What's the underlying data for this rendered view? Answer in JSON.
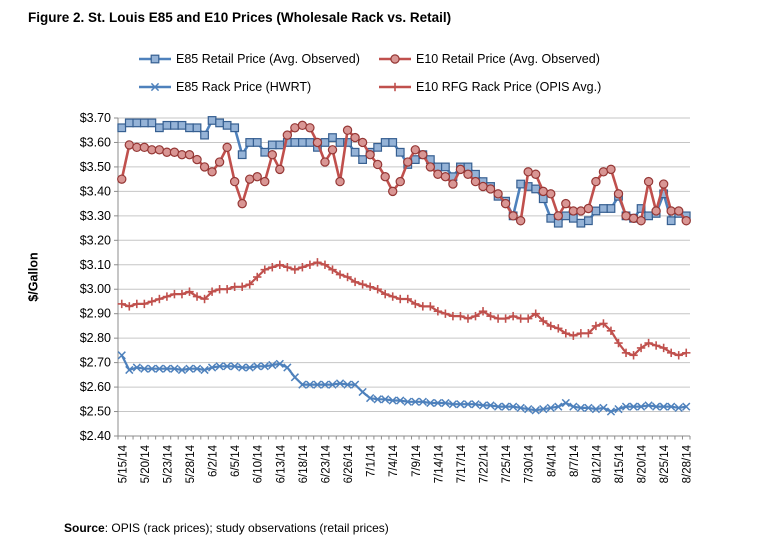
{
  "title": "Figure 2. St. Louis E85 and E10 Prices (Wholesale Rack vs. Retail)",
  "y_axis": {
    "title": "$/Gallon"
  },
  "source": {
    "label": "Source",
    "text": ": OPIS (rack prices); study observations (retail prices)"
  },
  "colors": {
    "blue": "#4E81BC",
    "blue_fill": "#95B3D7",
    "blue_dark": "#365F91",
    "red": "#C0504D",
    "red_fill": "#D99694",
    "red_dark": "#953735",
    "grid": "#C6C6C6",
    "axis": "#8C8C8C",
    "text": "#000000"
  },
  "chart_data": {
    "type": "line",
    "title": "Figure 2. St. Louis E85 and E10 Prices (Wholesale Rack vs. Retail)",
    "ylabel": "$/Gallon",
    "ylim": [
      2.4,
      3.7
    ],
    "y_tick_step": 0.1,
    "grid": "horizontal",
    "legend_position": "top",
    "n_points": 76,
    "label_every": 3,
    "x_labels_shown": [
      "5/15/14",
      "5/20/14",
      "5/23/14",
      "5/28/14",
      "6/2/14",
      "6/5/14",
      "6/10/14",
      "6/13/14",
      "6/18/14",
      "6/23/14",
      "6/26/14",
      "7/1/14",
      "7/4/14",
      "7/9/14",
      "7/14/14",
      "7/17/14",
      "7/22/14",
      "7/25/14",
      "7/30/14",
      "8/4/14",
      "8/7/14",
      "8/12/14",
      "8/15/14",
      "8/20/14",
      "8/25/14",
      "8/28/14"
    ],
    "series": [
      {
        "name": "E85 Retail Price (Avg. Observed)",
        "color_key": "blue",
        "marker": "square",
        "values": [
          3.66,
          3.68,
          3.68,
          3.68,
          3.68,
          3.66,
          3.67,
          3.67,
          3.67,
          3.66,
          3.66,
          3.63,
          3.69,
          3.68,
          3.67,
          3.66,
          3.55,
          3.6,
          3.6,
          3.56,
          3.59,
          3.59,
          3.6,
          3.6,
          3.6,
          3.6,
          3.58,
          3.6,
          3.62,
          3.6,
          3.6,
          3.56,
          3.53,
          3.56,
          3.58,
          3.6,
          3.6,
          3.56,
          3.51,
          3.53,
          3.55,
          3.53,
          3.5,
          3.5,
          3.46,
          3.5,
          3.5,
          3.47,
          3.44,
          3.42,
          3.38,
          3.36,
          3.3,
          3.43,
          3.42,
          3.41,
          3.37,
          3.29,
          3.27,
          3.3,
          3.29,
          3.27,
          3.28,
          3.32,
          3.33,
          3.33,
          3.38,
          3.3,
          3.29,
          3.33,
          3.3,
          3.31,
          3.39,
          3.28,
          3.31,
          3.3
        ]
      },
      {
        "name": "E10 Retail Price (Avg. Observed)",
        "color_key": "red",
        "marker": "circle",
        "values": [
          3.45,
          3.59,
          3.58,
          3.58,
          3.57,
          3.57,
          3.56,
          3.56,
          3.55,
          3.55,
          3.53,
          3.5,
          3.48,
          3.52,
          3.58,
          3.44,
          3.35,
          3.45,
          3.46,
          3.44,
          3.55,
          3.49,
          3.63,
          3.66,
          3.67,
          3.66,
          3.6,
          3.52,
          3.57,
          3.44,
          3.65,
          3.62,
          3.6,
          3.55,
          3.51,
          3.46,
          3.4,
          3.44,
          3.52,
          3.57,
          3.55,
          3.5,
          3.47,
          3.46,
          3.43,
          3.49,
          3.47,
          3.44,
          3.42,
          3.41,
          3.39,
          3.35,
          3.3,
          3.28,
          3.48,
          3.47,
          3.4,
          3.39,
          3.3,
          3.35,
          3.32,
          3.32,
          3.33,
          3.44,
          3.48,
          3.49,
          3.39,
          3.3,
          3.29,
          3.28,
          3.44,
          3.32,
          3.43,
          3.32,
          3.32,
          3.28
        ]
      },
      {
        "name": "E85 Rack Price (HWRT)",
        "color_key": "blue",
        "marker": "x",
        "values": [
          2.73,
          2.67,
          2.68,
          2.675,
          2.675,
          2.675,
          2.675,
          2.675,
          2.67,
          2.675,
          2.675,
          2.67,
          2.68,
          2.685,
          2.685,
          2.685,
          2.68,
          2.68,
          2.685,
          2.685,
          2.69,
          2.695,
          2.68,
          2.64,
          2.61,
          2.61,
          2.61,
          2.61,
          2.61,
          2.615,
          2.61,
          2.61,
          2.58,
          2.555,
          2.55,
          2.55,
          2.545,
          2.545,
          2.54,
          2.54,
          2.54,
          2.535,
          2.535,
          2.535,
          2.53,
          2.53,
          2.53,
          2.53,
          2.525,
          2.525,
          2.52,
          2.52,
          2.52,
          2.515,
          2.51,
          2.505,
          2.51,
          2.515,
          2.52,
          2.535,
          2.52,
          2.515,
          2.515,
          2.51,
          2.515,
          2.5,
          2.51,
          2.52,
          2.52,
          2.52,
          2.525,
          2.52,
          2.52,
          2.52,
          2.515,
          2.52
        ]
      },
      {
        "name": "E10 RFG Rack Price (OPIS Avg.)",
        "color_key": "red",
        "marker": "plus",
        "values": [
          2.94,
          2.93,
          2.94,
          2.94,
          2.95,
          2.96,
          2.97,
          2.98,
          2.98,
          2.99,
          2.97,
          2.96,
          2.99,
          3.0,
          3.0,
          3.01,
          3.01,
          3.02,
          3.05,
          3.08,
          3.09,
          3.1,
          3.09,
          3.08,
          3.09,
          3.1,
          3.11,
          3.1,
          3.08,
          3.06,
          3.05,
          3.03,
          3.02,
          3.01,
          3.0,
          2.98,
          2.97,
          2.96,
          2.96,
          2.94,
          2.93,
          2.93,
          2.91,
          2.9,
          2.89,
          2.89,
          2.88,
          2.89,
          2.91,
          2.89,
          2.88,
          2.88,
          2.89,
          2.88,
          2.88,
          2.9,
          2.87,
          2.85,
          2.84,
          2.82,
          2.81,
          2.82,
          2.82,
          2.85,
          2.86,
          2.83,
          2.78,
          2.74,
          2.73,
          2.76,
          2.78,
          2.77,
          2.76,
          2.74,
          2.73,
          2.74
        ]
      }
    ]
  }
}
